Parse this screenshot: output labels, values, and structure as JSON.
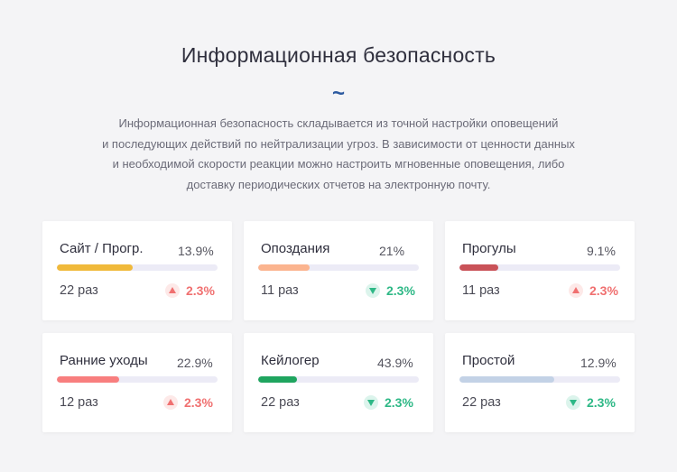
{
  "header": {
    "title": "Информационная безопасность",
    "ornament": "~",
    "description_lines": [
      "Информационная безопасность складывается из точной настройки оповещений",
      "и последующих действий по нейтрализации угроз. В зависимости от ценности данных",
      "и необходимой скорости реакции можно настроить мгновенные оповещения, либо",
      "доставку периодических отчетов на электронную почту."
    ]
  },
  "colors": {
    "up": "#f07070",
    "down": "#2eb886",
    "ornament": "#2c5aa0"
  },
  "cards": [
    {
      "name": "Сайт / Прогр.",
      "percent": "13.9%",
      "progress": 0.47,
      "bar_color": "#f0b93a",
      "count": "22 раз",
      "change": "2.3%",
      "direction": "up",
      "icon": "triangle-up-icon"
    },
    {
      "name": "Опоздания",
      "percent": "21%",
      "progress": 0.32,
      "bar_color": "#fbb48f",
      "count": "11 раз",
      "change": "2.3%",
      "direction": "down",
      "icon": "triangle-down-icon"
    },
    {
      "name": "Прогулы",
      "percent": "9.1%",
      "progress": 0.24,
      "bar_color": "#c95258",
      "count": "11 раз",
      "change": "2.3%",
      "direction": "up",
      "icon": "triangle-up-icon"
    },
    {
      "name": "Ранние уходы",
      "percent": "22.9%",
      "progress": 0.39,
      "bar_color": "#f87e7e",
      "count": "12 раз",
      "change": "2.3%",
      "direction": "up",
      "icon": "triangle-up-icon"
    },
    {
      "name": "Кейлогер",
      "percent": "43.9%",
      "progress": 0.24,
      "bar_color": "#1fa55f",
      "count": "22 раз",
      "change": "2.3%",
      "direction": "down",
      "icon": "triangle-down-icon"
    },
    {
      "name": "Простой",
      "percent": "12.9%",
      "progress": 0.59,
      "bar_color": "#c3d2e6",
      "count": "22 раз",
      "change": "2.3%",
      "direction": "down",
      "icon": "triangle-down-icon"
    }
  ]
}
